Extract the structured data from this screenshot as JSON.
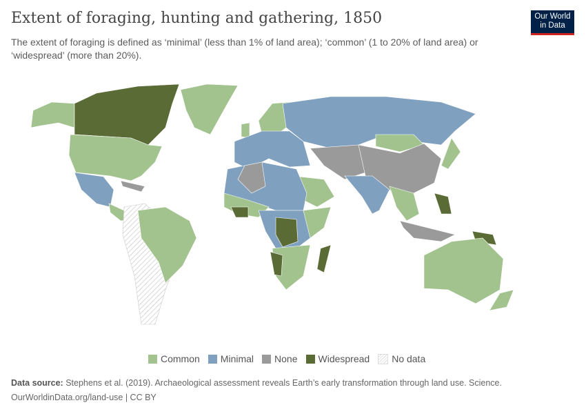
{
  "header": {
    "title": "Extent of foraging, hunting and gathering, 1850",
    "subtitle": "The extent of foraging is defined as ‘minimal’ (less than 1% of land area); ‘common’ (1 to 20% of land area) or ‘widespread’ (more than 20%).",
    "logo": "Our World in Data"
  },
  "colors": {
    "common": "#a2c28e",
    "minimal": "#7fa0bf",
    "none": "#9a9a9a",
    "widespread": "#5b6b35",
    "no_data": "#eeeeee"
  },
  "legend": [
    {
      "key": "common",
      "label": "Common"
    },
    {
      "key": "minimal",
      "label": "Minimal"
    },
    {
      "key": "none",
      "label": "None"
    },
    {
      "key": "widespread",
      "label": "Widespread"
    },
    {
      "key": "no_data",
      "label": "No data"
    }
  ],
  "footer": {
    "source_label": "Data source:",
    "source": "Stephens et al. (2019). Archaeological assessment reveals Earth’s early transformation through land use. Science.",
    "url": "OurWorldinData.org/land-use | CC BY"
  }
}
